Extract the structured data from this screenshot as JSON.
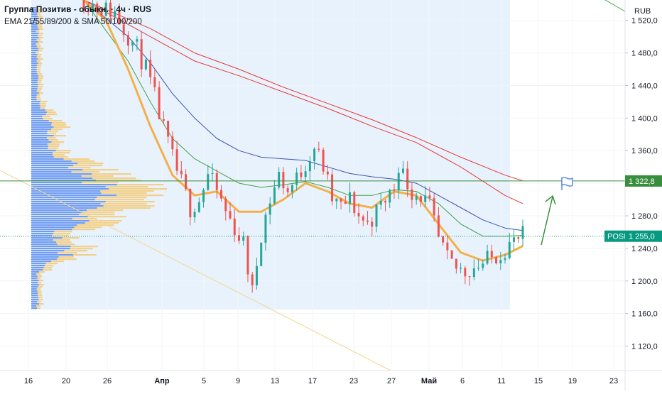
{
  "header": {
    "title": "Группа Позитив - обыкн. · 4ч · RUS",
    "indicators": "EMA 21/55/89/200 & SMA 50/100/200"
  },
  "currency": "RUB",
  "labels": {
    "level_value": "1 322,8",
    "ticker": "POSI",
    "price_value": "1 255,0"
  },
  "colors": {
    "up": "#26a69a",
    "down": "#ef5350",
    "ema21": "#f3b04a",
    "ema55": "#43a047",
    "ema89": "#3f51b5",
    "ma_red": "#e53935",
    "level": "#388e3c",
    "price_tag": "#089981",
    "vp_blue": "#5b8def",
    "vp_yellow": "#f5c76a",
    "range_bg": "#e8f2fc"
  },
  "chart_data": {
    "type": "candlestick",
    "y_axis": {
      "ticks": [
        1520,
        1480,
        1440,
        1400,
        1360,
        1320,
        1280,
        1240,
        1200,
        1160,
        1120
      ],
      "tick_labels": [
        "1 520,0",
        "1 480,0",
        "1 440,0",
        "1 400,0",
        "1 360,0",
        "1 320,0",
        "1 280,0",
        "1 240,0",
        "1 200,0",
        "1 160,0",
        "1 120,0"
      ],
      "range": [
        1090,
        1545
      ]
    },
    "x_axis": {
      "tick_labels": [
        "16",
        "20",
        "26",
        "Апр",
        "5",
        "9",
        "13",
        "17",
        "23",
        "27",
        "Май",
        "6",
        "11",
        "15",
        "19",
        "23"
      ]
    },
    "horizontal_level": 1322.8,
    "last_price": 1255.0,
    "ohlc_path": [
      [
        0,
        1545
      ],
      [
        8,
        1535
      ],
      [
        14,
        1530
      ],
      [
        18,
        1510
      ],
      [
        24,
        1485
      ],
      [
        28,
        1460
      ],
      [
        32,
        1425
      ],
      [
        36,
        1385
      ],
      [
        40,
        1350
      ],
      [
        44,
        1320
      ],
      [
        48,
        1290
      ],
      [
        52,
        1300
      ],
      [
        56,
        1330
      ],
      [
        60,
        1310
      ],
      [
        64,
        1285
      ],
      [
        68,
        1265
      ],
      [
        72,
        1245
      ],
      [
        74,
        1215
      ],
      [
        76,
        1185
      ],
      [
        80,
        1260
      ],
      [
        84,
        1300
      ],
      [
        88,
        1330
      ],
      [
        92,
        1310
      ],
      [
        96,
        1325
      ],
      [
        100,
        1345
      ],
      [
        104,
        1365
      ],
      [
        108,
        1340
      ],
      [
        112,
        1300
      ],
      [
        116,
        1290
      ],
      [
        120,
        1300
      ],
      [
        124,
        1280
      ],
      [
        128,
        1270
      ],
      [
        132,
        1285
      ],
      [
        136,
        1300
      ],
      [
        140,
        1315
      ],
      [
        142,
        1345
      ],
      [
        144,
        1330
      ],
      [
        148,
        1310
      ],
      [
        152,
        1305
      ],
      [
        156,
        1290
      ],
      [
        158,
        1270
      ],
      [
        160,
        1250
      ],
      [
        164,
        1225
      ],
      [
        168,
        1215
      ],
      [
        172,
        1212
      ],
      [
        176,
        1218
      ],
      [
        180,
        1222
      ],
      [
        184,
        1228
      ],
      [
        188,
        1236
      ],
      [
        192,
        1245
      ],
      [
        196,
        1250
      ],
      [
        198,
        1255
      ]
    ],
    "ema21": [
      [
        0,
        1545
      ],
      [
        10,
        1520
      ],
      [
        20,
        1460
      ],
      [
        30,
        1390
      ],
      [
        40,
        1330
      ],
      [
        50,
        1305
      ],
      [
        60,
        1310
      ],
      [
        70,
        1285
      ],
      [
        80,
        1285
      ],
      [
        90,
        1300
      ],
      [
        100,
        1320
      ],
      [
        110,
        1310
      ],
      [
        120,
        1295
      ],
      [
        130,
        1290
      ],
      [
        140,
        1310
      ],
      [
        150,
        1305
      ],
      [
        160,
        1270
      ],
      [
        170,
        1235
      ],
      [
        180,
        1225
      ],
      [
        190,
        1232
      ],
      [
        198,
        1243
      ]
    ],
    "ema55": [
      [
        0,
        1545
      ],
      [
        20,
        1470
      ],
      [
        30,
        1420
      ],
      [
        40,
        1375
      ],
      [
        50,
        1350
      ],
      [
        60,
        1335
      ],
      [
        70,
        1320
      ],
      [
        80,
        1315
      ],
      [
        90,
        1318
      ],
      [
        100,
        1322
      ],
      [
        110,
        1315
      ],
      [
        120,
        1305
      ],
      [
        130,
        1305
      ],
      [
        140,
        1312
      ],
      [
        150,
        1310
      ],
      [
        160,
        1295
      ],
      [
        170,
        1270
      ],
      [
        180,
        1255
      ],
      [
        190,
        1255
      ],
      [
        198,
        1256
      ]
    ],
    "ema89": [
      [
        0,
        1545
      ],
      [
        20,
        1500
      ],
      [
        30,
        1468
      ],
      [
        40,
        1430
      ],
      [
        50,
        1400
      ],
      [
        60,
        1375
      ],
      [
        70,
        1360
      ],
      [
        80,
        1352
      ],
      [
        90,
        1350
      ],
      [
        100,
        1348
      ],
      [
        110,
        1340
      ],
      [
        120,
        1332
      ],
      [
        130,
        1328
      ],
      [
        140,
        1325
      ],
      [
        150,
        1320
      ],
      [
        160,
        1305
      ],
      [
        170,
        1290
      ],
      [
        180,
        1275
      ],
      [
        190,
        1265
      ],
      [
        198,
        1262
      ]
    ],
    "ma_red_upper": [
      [
        0,
        1545
      ],
      [
        30,
        1510
      ],
      [
        50,
        1480
      ],
      [
        70,
        1460
      ],
      [
        90,
        1438
      ],
      [
        110,
        1418
      ],
      [
        130,
        1398
      ],
      [
        150,
        1376
      ],
      [
        170,
        1352
      ],
      [
        190,
        1330
      ],
      [
        198,
        1323
      ]
    ],
    "ma_red_lower": [
      [
        0,
        1545
      ],
      [
        30,
        1500
      ],
      [
        50,
        1470
      ],
      [
        70,
        1452
      ],
      [
        90,
        1432
      ],
      [
        110,
        1412
      ],
      [
        130,
        1390
      ],
      [
        150,
        1370
      ],
      [
        170,
        1340
      ],
      [
        190,
        1305
      ],
      [
        198,
        1295
      ]
    ]
  }
}
